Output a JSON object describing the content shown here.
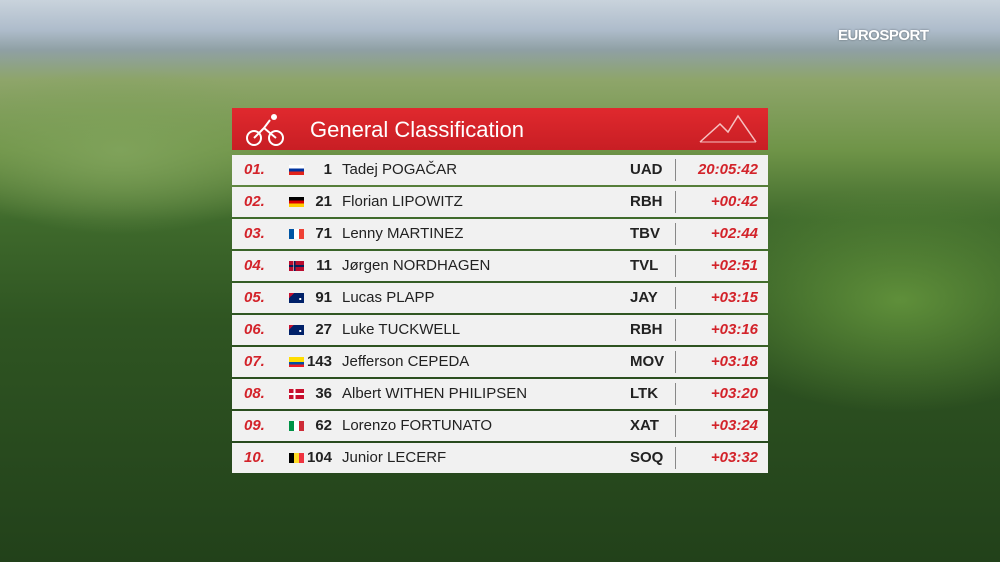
{
  "brand": "EUROSPORT",
  "header": {
    "title": "General Classification"
  },
  "table": {
    "rows": [
      [
        "01.",
        "1",
        "Tadej POGAČAR",
        "UAD",
        "20:05:42"
      ],
      [
        "02.",
        "21",
        "Florian LIPOWITZ",
        "RBH",
        "+00:42"
      ],
      [
        "03.",
        "71",
        "Lenny MARTINEZ",
        "TBV",
        "+02:44"
      ],
      [
        "04.",
        "11",
        "Jørgen NORDHAGEN",
        "TVL",
        "+02:51"
      ],
      [
        "05.",
        "91",
        "Lucas PLAPP",
        "JAY",
        "+03:15"
      ],
      [
        "06.",
        "27",
        "Luke TUCKWELL",
        "RBH",
        "+03:16"
      ],
      [
        "07.",
        "143",
        "Jefferson CEPEDA",
        "MOV",
        "+03:18"
      ],
      [
        "08.",
        "36",
        "Albert WITHEN PHILIPSEN",
        "LTK",
        "+03:20"
      ],
      [
        "09.",
        "62",
        "Lorenzo FORTUNATO",
        "XAT",
        "+03:24"
      ],
      [
        "10.",
        "104",
        "Junior LECERF",
        "SOQ",
        "+03:32"
      ]
    ]
  }
}
